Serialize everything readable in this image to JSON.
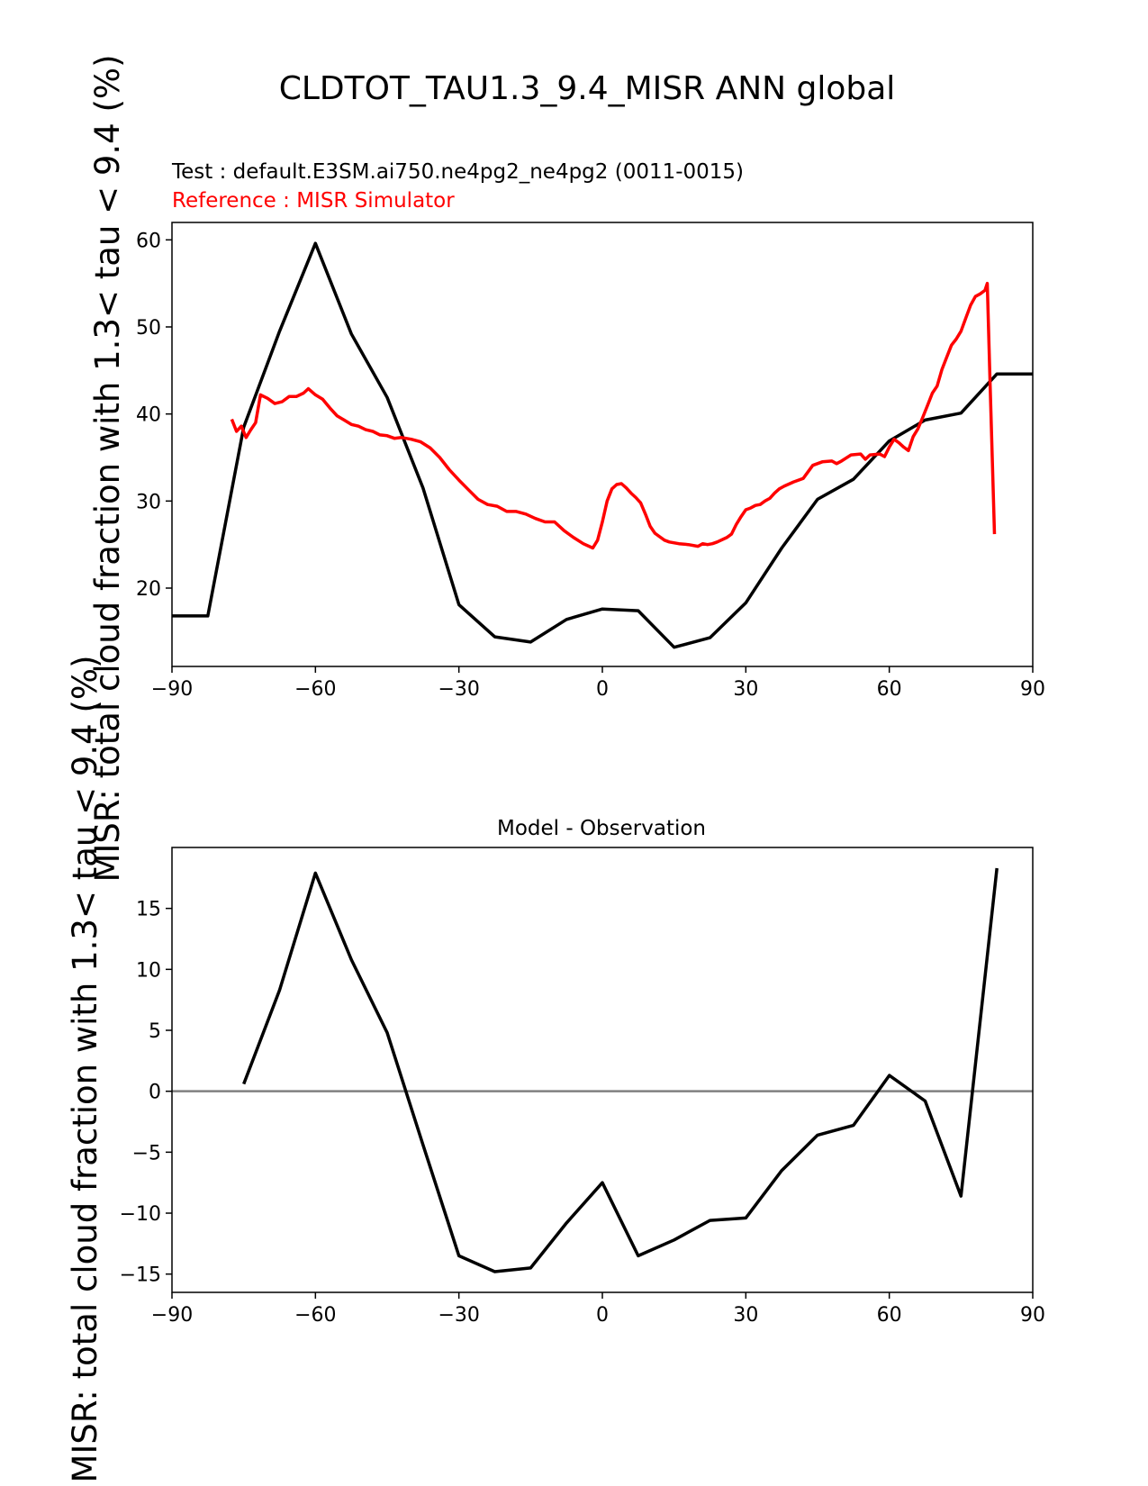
{
  "figure_title": "CLDTOT_TAU1.3_9.4_MISR ANN global",
  "ylabel": "MISR: total cloud fraction with 1.3< tau < 9.4 (%)",
  "colors": {
    "test": "#000000",
    "reference": "#ff0000",
    "zero_line": "#808080"
  },
  "chart_data": [
    {
      "type": "line",
      "test_label": "Test : default.E3SM.ai750.ne4pg2_ne4pg2 (0011-0015)",
      "reference_label": "Reference : MISR Simulator",
      "xlim": [
        -90,
        90
      ],
      "ylim": [
        11,
        62
      ],
      "xticks": [
        -90,
        -60,
        -30,
        0,
        30,
        60,
        90
      ],
      "yticks": [
        20,
        30,
        40,
        50,
        60
      ],
      "xtick_labels": [
        "−90",
        "−60",
        "−30",
        "0",
        "30",
        "60",
        "90"
      ],
      "ytick_labels": [
        "20",
        "30",
        "40",
        "50",
        "60"
      ],
      "series": [
        {
          "key": "test",
          "x": [
            -90,
            -82.5,
            -75,
            -67.5,
            -60,
            -52.5,
            -45,
            -37.5,
            -30,
            -22.5,
            -15,
            -7.5,
            0,
            7.5,
            15,
            22.5,
            30,
            37.5,
            45,
            52.5,
            60,
            67.5,
            75,
            82.5,
            90
          ],
          "y": [
            16.8,
            16.8,
            38.5,
            49.5,
            59.6,
            49.2,
            41.9,
            31.5,
            18.1,
            14.4,
            13.8,
            16.4,
            17.6,
            17.4,
            13.2,
            14.3,
            18.3,
            24.6,
            30.2,
            32.5,
            36.9,
            39.3,
            40.1,
            44.6,
            44.6
          ]
        },
        {
          "key": "reference",
          "x": [
            -77.5,
            -76.5,
            -75.5,
            -74.5,
            -73.5,
            -72.5,
            -71.5,
            -70,
            -68.5,
            -67,
            -65.5,
            -64,
            -62.5,
            -61.5,
            -60,
            -58.5,
            -57,
            -55.5,
            -54,
            -52.5,
            -51,
            -49.5,
            -48,
            -46.5,
            -45,
            -43.5,
            -42,
            -40,
            -38,
            -36,
            -34,
            -32,
            -30,
            -28,
            -26,
            -24,
            -22,
            -20,
            -18,
            -16,
            -14,
            -12,
            -10,
            -8,
            -6,
            -4,
            -2,
            -1,
            0,
            1,
            2,
            3,
            4,
            5,
            6,
            7,
            8,
            9,
            10,
            11,
            12,
            13,
            14,
            16,
            18,
            20,
            21,
            22,
            23,
            24,
            26,
            27,
            28,
            29,
            30,
            31,
            32,
            33,
            34,
            35,
            36,
            37,
            38,
            40,
            42,
            44,
            46,
            48,
            49,
            50,
            52,
            54,
            55,
            56,
            58,
            59,
            60,
            61,
            62,
            63,
            64,
            65,
            66,
            67,
            68,
            69,
            70,
            71,
            72,
            73,
            74,
            75,
            76,
            77,
            78,
            79,
            80,
            80.5,
            81,
            82
          ],
          "y": [
            39.4,
            38,
            38.6,
            37.3,
            38.2,
            39,
            42.2,
            41.8,
            41.2,
            41.4,
            42,
            42,
            42.4,
            42.9,
            42.2,
            41.7,
            40.7,
            39.8,
            39.3,
            38.8,
            38.6,
            38.2,
            38,
            37.6,
            37.5,
            37.2,
            37.3,
            37.1,
            36.8,
            36.1,
            35,
            33.6,
            32.4,
            31.3,
            30.2,
            29.6,
            29.4,
            28.8,
            28.8,
            28.5,
            28,
            27.6,
            27.6,
            26.6,
            25.8,
            25.1,
            24.6,
            25.5,
            27.6,
            30,
            31.4,
            31.9,
            32,
            31.5,
            30.9,
            30.4,
            29.8,
            28.5,
            27.1,
            26.3,
            25.9,
            25.5,
            25.3,
            25.1,
            25,
            24.8,
            25.1,
            25,
            25.1,
            25.3,
            25.8,
            26.2,
            27.3,
            28.2,
            29,
            29.2,
            29.5,
            29.6,
            30,
            30.3,
            30.9,
            31.4,
            31.7,
            32.2,
            32.6,
            34.1,
            34.5,
            34.6,
            34.3,
            34.6,
            35.3,
            35.4,
            34.8,
            35.3,
            35.4,
            35.1,
            36.2,
            37.1,
            36.7,
            36.2,
            35.8,
            37.4,
            38.3,
            39.6,
            41,
            42.4,
            43.2,
            45.1,
            46.5,
            47.9,
            48.6,
            49.5,
            51,
            52.5,
            53.5,
            53.8,
            54.2,
            55,
            45,
            26.2
          ]
        }
      ]
    },
    {
      "type": "line",
      "title": "Model - Observation",
      "xlim": [
        -90,
        90
      ],
      "ylim": [
        -16.5,
        20
      ],
      "xticks": [
        -90,
        -60,
        -30,
        0,
        30,
        60,
        90
      ],
      "yticks": [
        -15,
        -10,
        -5,
        0,
        5,
        10,
        15
      ],
      "xtick_labels": [
        "−90",
        "−60",
        "−30",
        "0",
        "30",
        "60",
        "90"
      ],
      "ytick_labels": [
        "−15",
        "−10",
        "−5",
        "0",
        "5",
        "10",
        "15"
      ],
      "zero_line": 0,
      "series": [
        {
          "key": "diff",
          "x": [
            -75,
            -67.5,
            -60,
            -52.5,
            -45,
            -37.5,
            -30,
            -22.5,
            -15,
            -7.5,
            0,
            7.5,
            15,
            22.5,
            30,
            37.5,
            45,
            52.5,
            60,
            67.5,
            75,
            82.5
          ],
          "y": [
            0.6,
            8.3,
            17.9,
            10.8,
            4.8,
            -4.4,
            -13.5,
            -14.8,
            -14.5,
            -10.8,
            -7.5,
            -13.5,
            -12.2,
            -10.6,
            -10.4,
            -6.5,
            -3.6,
            -2.8,
            1.3,
            -0.8,
            -8.6,
            18.3
          ]
        }
      ]
    }
  ]
}
